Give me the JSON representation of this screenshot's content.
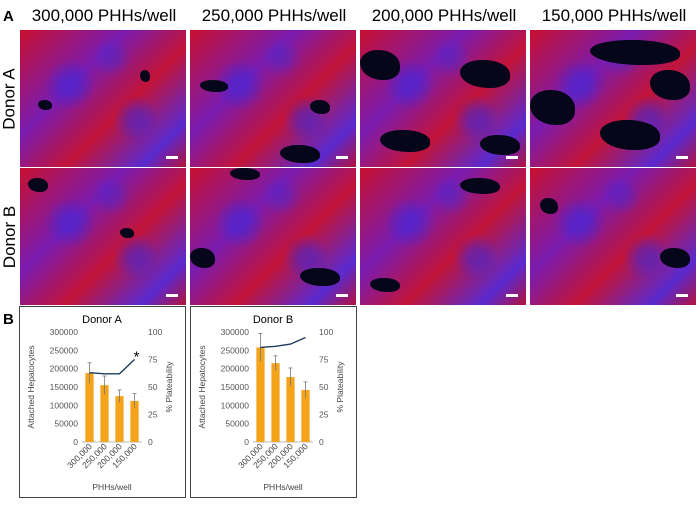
{
  "panels": {
    "a": "A",
    "b": "B"
  },
  "columns": [
    "300,000 PHHs/well",
    "250,000 PHHs/well",
    "200,000 PHHs/well",
    "150,000 PHHs/well"
  ],
  "rows": [
    "Donor A",
    "Donor B"
  ],
  "colors": {
    "bar": "#f5a31a",
    "line": "#1f3b5a",
    "cell_red": "#c8102e",
    "nuclei_blue": "#4a2ee0",
    "background_dark": "#05061a"
  },
  "chart_data": [
    {
      "type": "bar",
      "title": "Donor A",
      "categories": [
        "300,000",
        "250,000",
        "200,000",
        "150,000"
      ],
      "series": [
        {
          "axis": "left",
          "type": "bar",
          "values": [
            188000,
            155000,
            125000,
            112000
          ],
          "errors": [
            28000,
            25000,
            17000,
            20000
          ]
        },
        {
          "axis": "right",
          "type": "line",
          "values": [
            63,
            62,
            62,
            75
          ]
        }
      ],
      "xlabel": "PHHs/well",
      "ylabel": "Attached Hepatocytes",
      "y2label": "% Plateability",
      "ylim": [
        0,
        300000
      ],
      "yticks": [
        "0",
        "50000",
        "100000",
        "150000",
        "200000",
        "250000",
        "300000"
      ],
      "y2lim": [
        0,
        100
      ],
      "y2ticks": [
        "0",
        "25",
        "50",
        "75",
        "100"
      ],
      "annotation": "*"
    },
    {
      "type": "bar",
      "title": "Donor B",
      "categories": [
        "300,000",
        "250,000",
        "200,000",
        "150,000"
      ],
      "series": [
        {
          "axis": "left",
          "type": "bar",
          "values": [
            258000,
            215000,
            177000,
            142000
          ],
          "errors": [
            38000,
            20000,
            25000,
            22000
          ]
        },
        {
          "axis": "right",
          "type": "line",
          "values": [
            86,
            87,
            89,
            95
          ]
        }
      ],
      "xlabel": "PHHs/well",
      "ylabel": "Attached Hepatocytes",
      "y2label": "% Plateability",
      "ylim": [
        0,
        300000
      ],
      "yticks": [
        "0",
        "50000",
        "100000",
        "150000",
        "200000",
        "250000",
        "300000"
      ],
      "y2lim": [
        0,
        100
      ],
      "y2ticks": [
        "0",
        "25",
        "50",
        "75",
        "100"
      ],
      "annotation": ""
    }
  ]
}
